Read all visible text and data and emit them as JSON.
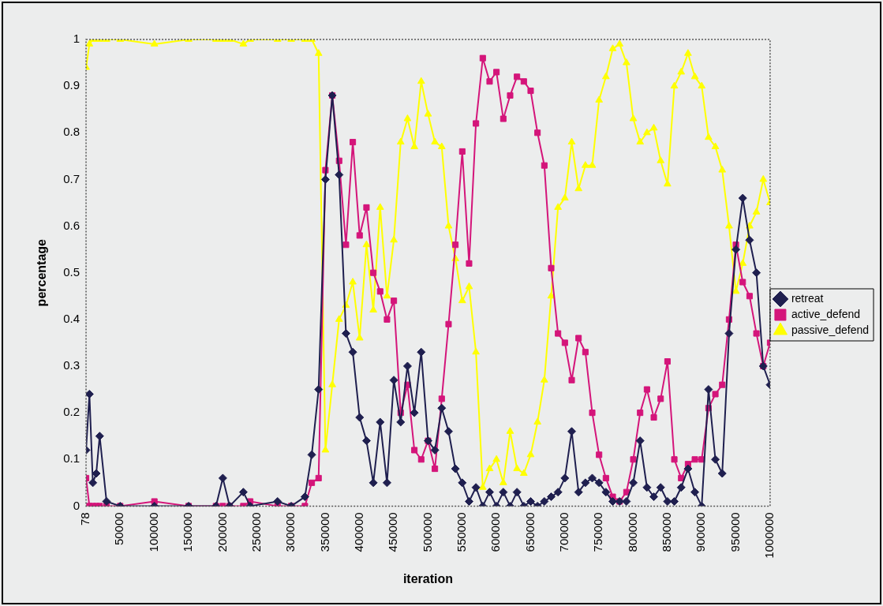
{
  "chart_data": {
    "type": "line",
    "xlabel": "iteration",
    "ylabel": "percentage",
    "x": [
      78,
      5000,
      10000,
      15000,
      20000,
      30000,
      50000,
      100000,
      150000,
      190000,
      200000,
      210000,
      230000,
      240000,
      280000,
      300000,
      320000,
      330000,
      340000,
      350000,
      360000,
      370000,
      380000,
      390000,
      400000,
      410000,
      420000,
      430000,
      440000,
      450000,
      460000,
      470000,
      480000,
      490000,
      500000,
      510000,
      520000,
      530000,
      540000,
      550000,
      560000,
      570000,
      580000,
      590000,
      600000,
      610000,
      620000,
      630000,
      640000,
      650000,
      660000,
      670000,
      680000,
      690000,
      700000,
      710000,
      720000,
      730000,
      740000,
      750000,
      760000,
      770000,
      780000,
      790000,
      800000,
      810000,
      820000,
      830000,
      840000,
      850000,
      860000,
      870000,
      880000,
      890000,
      900000,
      910000,
      920000,
      930000,
      940000,
      950000,
      960000,
      970000,
      980000,
      990000,
      1000000
    ],
    "series": [
      {
        "name": "retreat",
        "color": "#1f1f4f",
        "marker": "diamond",
        "values": [
          0.12,
          0.24,
          0.05,
          0.07,
          0.15,
          0.01,
          0,
          0,
          0,
          0,
          0.06,
          0,
          0.03,
          0,
          0.01,
          0,
          0.02,
          0.11,
          0.25,
          0.7,
          0.88,
          0.71,
          0.37,
          0.33,
          0.19,
          0.14,
          0.05,
          0.18,
          0.05,
          0.27,
          0.18,
          0.3,
          0.2,
          0.33,
          0.14,
          0.12,
          0.21,
          0.16,
          0.08,
          0.05,
          0.01,
          0.04,
          0,
          0.03,
          0,
          0.03,
          0,
          0.03,
          0,
          0.01,
          0,
          0.01,
          0.02,
          0.03,
          0.06,
          0.16,
          0.03,
          0.05,
          0.06,
          0.05,
          0.03,
          0.01,
          0.01,
          0.01,
          0.05,
          0.14,
          0.04,
          0.02,
          0.04,
          0.01,
          0.01,
          0.04,
          0.08,
          0.03,
          0,
          0.25,
          0.1,
          0.07,
          0.37,
          0.55,
          0.66,
          0.57,
          0.5,
          0.3,
          0.26
        ]
      },
      {
        "name": "active_defend",
        "color": "#d4157a",
        "marker": "square",
        "values": [
          0.06,
          0,
          0,
          0,
          0,
          0,
          0,
          0.01,
          0,
          0,
          0,
          0,
          0,
          0.01,
          0,
          0,
          0,
          0.05,
          0.06,
          0.72,
          0.88,
          0.74,
          0.56,
          0.78,
          0.58,
          0.64,
          0.5,
          0.46,
          0.4,
          0.44,
          0.2,
          0.26,
          0.12,
          0.1,
          0.14,
          0.08,
          0.23,
          0.39,
          0.56,
          0.76,
          0.52,
          0.82,
          0.96,
          0.91,
          0.93,
          0.83,
          0.88,
          0.92,
          0.91,
          0.89,
          0.8,
          0.73,
          0.51,
          0.37,
          0.35,
          0.27,
          0.36,
          0.33,
          0.2,
          0.11,
          0.06,
          0.02,
          0.01,
          0.03,
          0.1,
          0.2,
          0.25,
          0.19,
          0.23,
          0.31,
          0.1,
          0.06,
          0.09,
          0.1,
          0.1,
          0.21,
          0.24,
          0.26,
          0.4,
          0.56,
          0.48,
          0.45,
          0.37,
          0.3,
          0.35
        ]
      },
      {
        "name": "passive_defend",
        "color": "#ffff00",
        "marker": "triangle",
        "values": [
          0.94,
          0.99,
          1,
          1,
          1,
          1,
          1,
          0.99,
          1,
          1,
          1,
          1,
          0.99,
          1,
          1,
          1,
          1,
          1,
          0.97,
          0.12,
          0.26,
          0.4,
          0.43,
          0.48,
          0.36,
          0.56,
          0.42,
          0.64,
          0.45,
          0.57,
          0.78,
          0.83,
          0.77,
          0.91,
          0.84,
          0.78,
          0.77,
          0.6,
          0.53,
          0.44,
          0.47,
          0.33,
          0.04,
          0.08,
          0.1,
          0.05,
          0.16,
          0.08,
          0.07,
          0.11,
          0.18,
          0.27,
          0.45,
          0.64,
          0.66,
          0.78,
          0.68,
          0.73,
          0.73,
          0.87,
          0.92,
          0.98,
          0.99,
          0.95,
          0.83,
          0.78,
          0.8,
          0.81,
          0.74,
          0.69,
          0.9,
          0.93,
          0.97,
          0.92,
          0.9,
          0.79,
          0.77,
          0.72,
          0.6,
          0.46,
          0.52,
          0.6,
          0.63,
          0.7,
          0.65
        ]
      }
    ],
    "xlim": [
      78,
      1000000
    ],
    "xticks": [
      78,
      50000,
      100000,
      150000,
      200000,
      250000,
      300000,
      350000,
      400000,
      450000,
      500000,
      550000,
      600000,
      650000,
      700000,
      750000,
      800000,
      850000,
      900000,
      950000,
      1000000
    ],
    "ylim": [
      0,
      1
    ],
    "yticks": [
      0,
      0.1,
      0.2,
      0.3,
      0.4,
      0.5,
      0.6,
      0.7,
      0.8,
      0.9,
      1
    ],
    "grid": false,
    "legend": "right",
    "line_style": "solid"
  }
}
